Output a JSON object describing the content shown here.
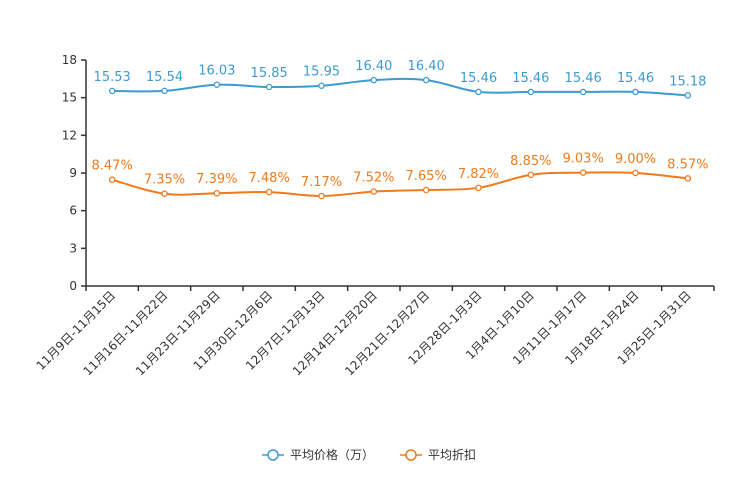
{
  "chart_data": {
    "type": "line",
    "title": "",
    "xlabel": "",
    "ylabel": "",
    "ylim": [
      0,
      18
    ],
    "yticks": [
      0,
      3,
      6,
      9,
      12,
      15,
      18
    ],
    "grid": false,
    "legend_position": "bottom-center",
    "categories": [
      "11月9日-11月15日",
      "11月16日-11月22日",
      "11月23日-11月29日",
      "11月30日-12月6日",
      "12月7日-12月13日",
      "12月14日-12月20日",
      "12月21日-12月27日",
      "12月28日-1月3日",
      "1月4日-1月10日",
      "1月11日-1月17日",
      "1月18日-1月24日",
      "1月25日-1月31日"
    ],
    "series": [
      {
        "name": "平均价格（万）",
        "color": "#3e9bd0",
        "values": [
          15.53,
          15.54,
          16.03,
          15.85,
          15.95,
          16.4,
          16.4,
          15.46,
          15.46,
          15.46,
          15.46,
          15.18
        ],
        "labels": [
          "15.53",
          "15.54",
          "16.03",
          "15.85",
          "15.95",
          "16.40",
          "16.40",
          "15.46",
          "15.46",
          "15.46",
          "15.46",
          "15.18"
        ]
      },
      {
        "name": "平均折扣",
        "color": "#f07a1c",
        "values": [
          8.47,
          7.35,
          7.39,
          7.48,
          7.17,
          7.52,
          7.65,
          7.82,
          8.85,
          9.03,
          9.0,
          8.57
        ],
        "labels": [
          "8.47%",
          "7.35%",
          "7.39%",
          "7.48%",
          "7.17%",
          "7.52%",
          "7.65%",
          "7.82%",
          "8.85%",
          "9.03%",
          "9.00%",
          "8.57%"
        ]
      }
    ]
  }
}
